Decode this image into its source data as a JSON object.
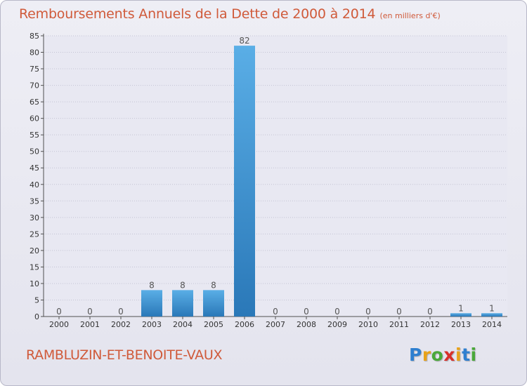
{
  "title": "Remboursements Annuels de la Dette de 2000 à 2014",
  "unit_note": "(en milliers d'€)",
  "commune": "RAMBLUZIN-ET-BENOITE-VAUX",
  "brand": {
    "letters": [
      {
        "ch": "P",
        "color": "#2e7fd0"
      },
      {
        "ch": "r",
        "color": "#e8a21a"
      },
      {
        "ch": "o",
        "color": "#4aa83a"
      },
      {
        "ch": "x",
        "color": "#d8302a"
      },
      {
        "ch": "i",
        "color": "#e8a21a"
      },
      {
        "ch": "t",
        "color": "#2e7fd0"
      },
      {
        "ch": "i",
        "color": "#4aa83a"
      }
    ]
  },
  "colors": {
    "title": "#d05a3a",
    "bar_top": "#5aaee6",
    "bar_bottom": "#2a78b8",
    "grid": "#c4c4d4",
    "axis": "#505050"
  },
  "chart_data": {
    "type": "bar",
    "title": "Remboursements Annuels de la Dette de 2000 à 2014",
    "xlabel": "",
    "ylabel": "",
    "ylim": [
      0,
      85
    ],
    "yticks": [
      0,
      5,
      10,
      15,
      20,
      25,
      30,
      35,
      40,
      45,
      50,
      55,
      60,
      65,
      70,
      75,
      80,
      85
    ],
    "grid": true,
    "categories": [
      "2000",
      "2001",
      "2002",
      "2003",
      "2004",
      "2005",
      "2006",
      "2007",
      "2008",
      "2009",
      "2010",
      "2011",
      "2012",
      "2013",
      "2014"
    ],
    "values": [
      0,
      0,
      0,
      8,
      8,
      8,
      82,
      0,
      0,
      0,
      0,
      0,
      0,
      1,
      1
    ]
  }
}
